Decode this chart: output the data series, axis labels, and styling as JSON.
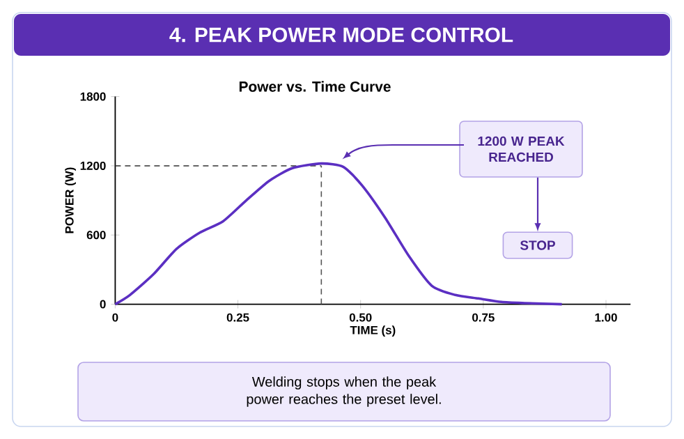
{
  "chart_data": {
    "type": "line",
    "title": "4. PEAK POWER MODE CONTROL",
    "subtitle": "Power vs. Time Curve",
    "xlabel": "TIME (s)",
    "ylabel": "POWER (W)",
    "x": [
      0,
      0.03,
      0.078,
      0.125,
      0.172,
      0.22,
      0.267,
      0.314,
      0.361,
      0.42,
      0.465,
      0.503,
      0.55,
      0.598,
      0.645,
      0.693,
      0.74,
      0.787,
      0.834,
      0.91
    ],
    "series": [
      {
        "color": "#5b2fc2",
        "values": [
          0,
          80,
          260,
          480,
          620,
          720,
          900,
          1070,
          1180,
          1220,
          1190,
          1030,
          750,
          420,
          160,
          80,
          50,
          20,
          10,
          0
        ]
      }
    ],
    "xlim": [
      0,
      1.05
    ],
    "ylim": [
      0,
      1800
    ],
    "xticks": [
      0,
      0.25,
      {
        "value": 0.5,
        "label": "0.50"
      },
      0.75,
      {
        "value": 1,
        "label": "1.00"
      }
    ],
    "yticks": [
      0,
      600,
      1200,
      1800
    ],
    "ref_lines": [
      {
        "axis": "y",
        "value": 1200,
        "line_style": "dashed",
        "color": "#333333"
      },
      {
        "axis": "x",
        "value": 0.42,
        "line_style": "dashed",
        "color": "#555555"
      }
    ],
    "annotations": [
      {
        "text": "1200 W PEAK REACHED",
        "x": 0.46,
        "y": 1220
      },
      "STOP",
      "Welding stops when the peak power reaches the preset level."
    ]
  }
}
